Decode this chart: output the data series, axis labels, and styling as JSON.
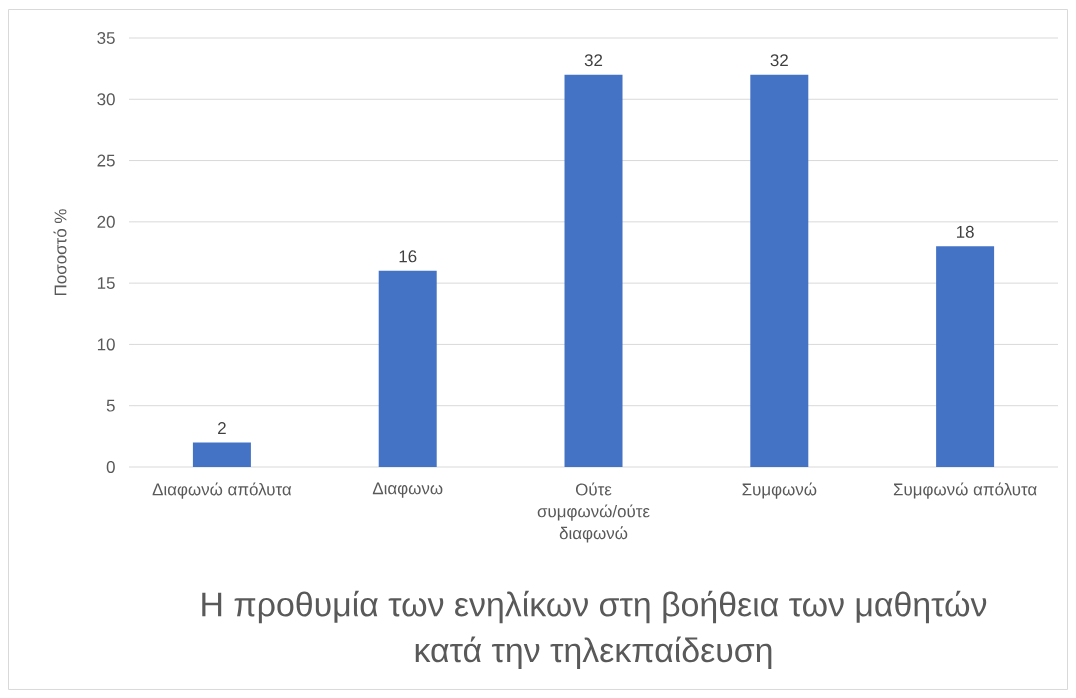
{
  "chart_data": {
    "type": "bar",
    "xlabel": "Η προθυμία των ενηλίκων στη βοήθεια των μαθητών κατά την τηλεκπαίδευση",
    "ylabel": "Ποσοστό %",
    "categories": [
      "Διαφωνώ απόλυτα",
      "Διαφωνω",
      "Ούτε συμφωνώ/ούτε διαφωνώ",
      "Συμφωνώ",
      "Συμφωνώ απόλυτα"
    ],
    "values": [
      2,
      16,
      32,
      32,
      18
    ],
    "color": "#4472c4",
    "ylim": [
      0,
      35
    ],
    "yticks": [
      0,
      5,
      10,
      15,
      20,
      25,
      30,
      35
    ],
    "grid": "y",
    "data_labels": true
  }
}
